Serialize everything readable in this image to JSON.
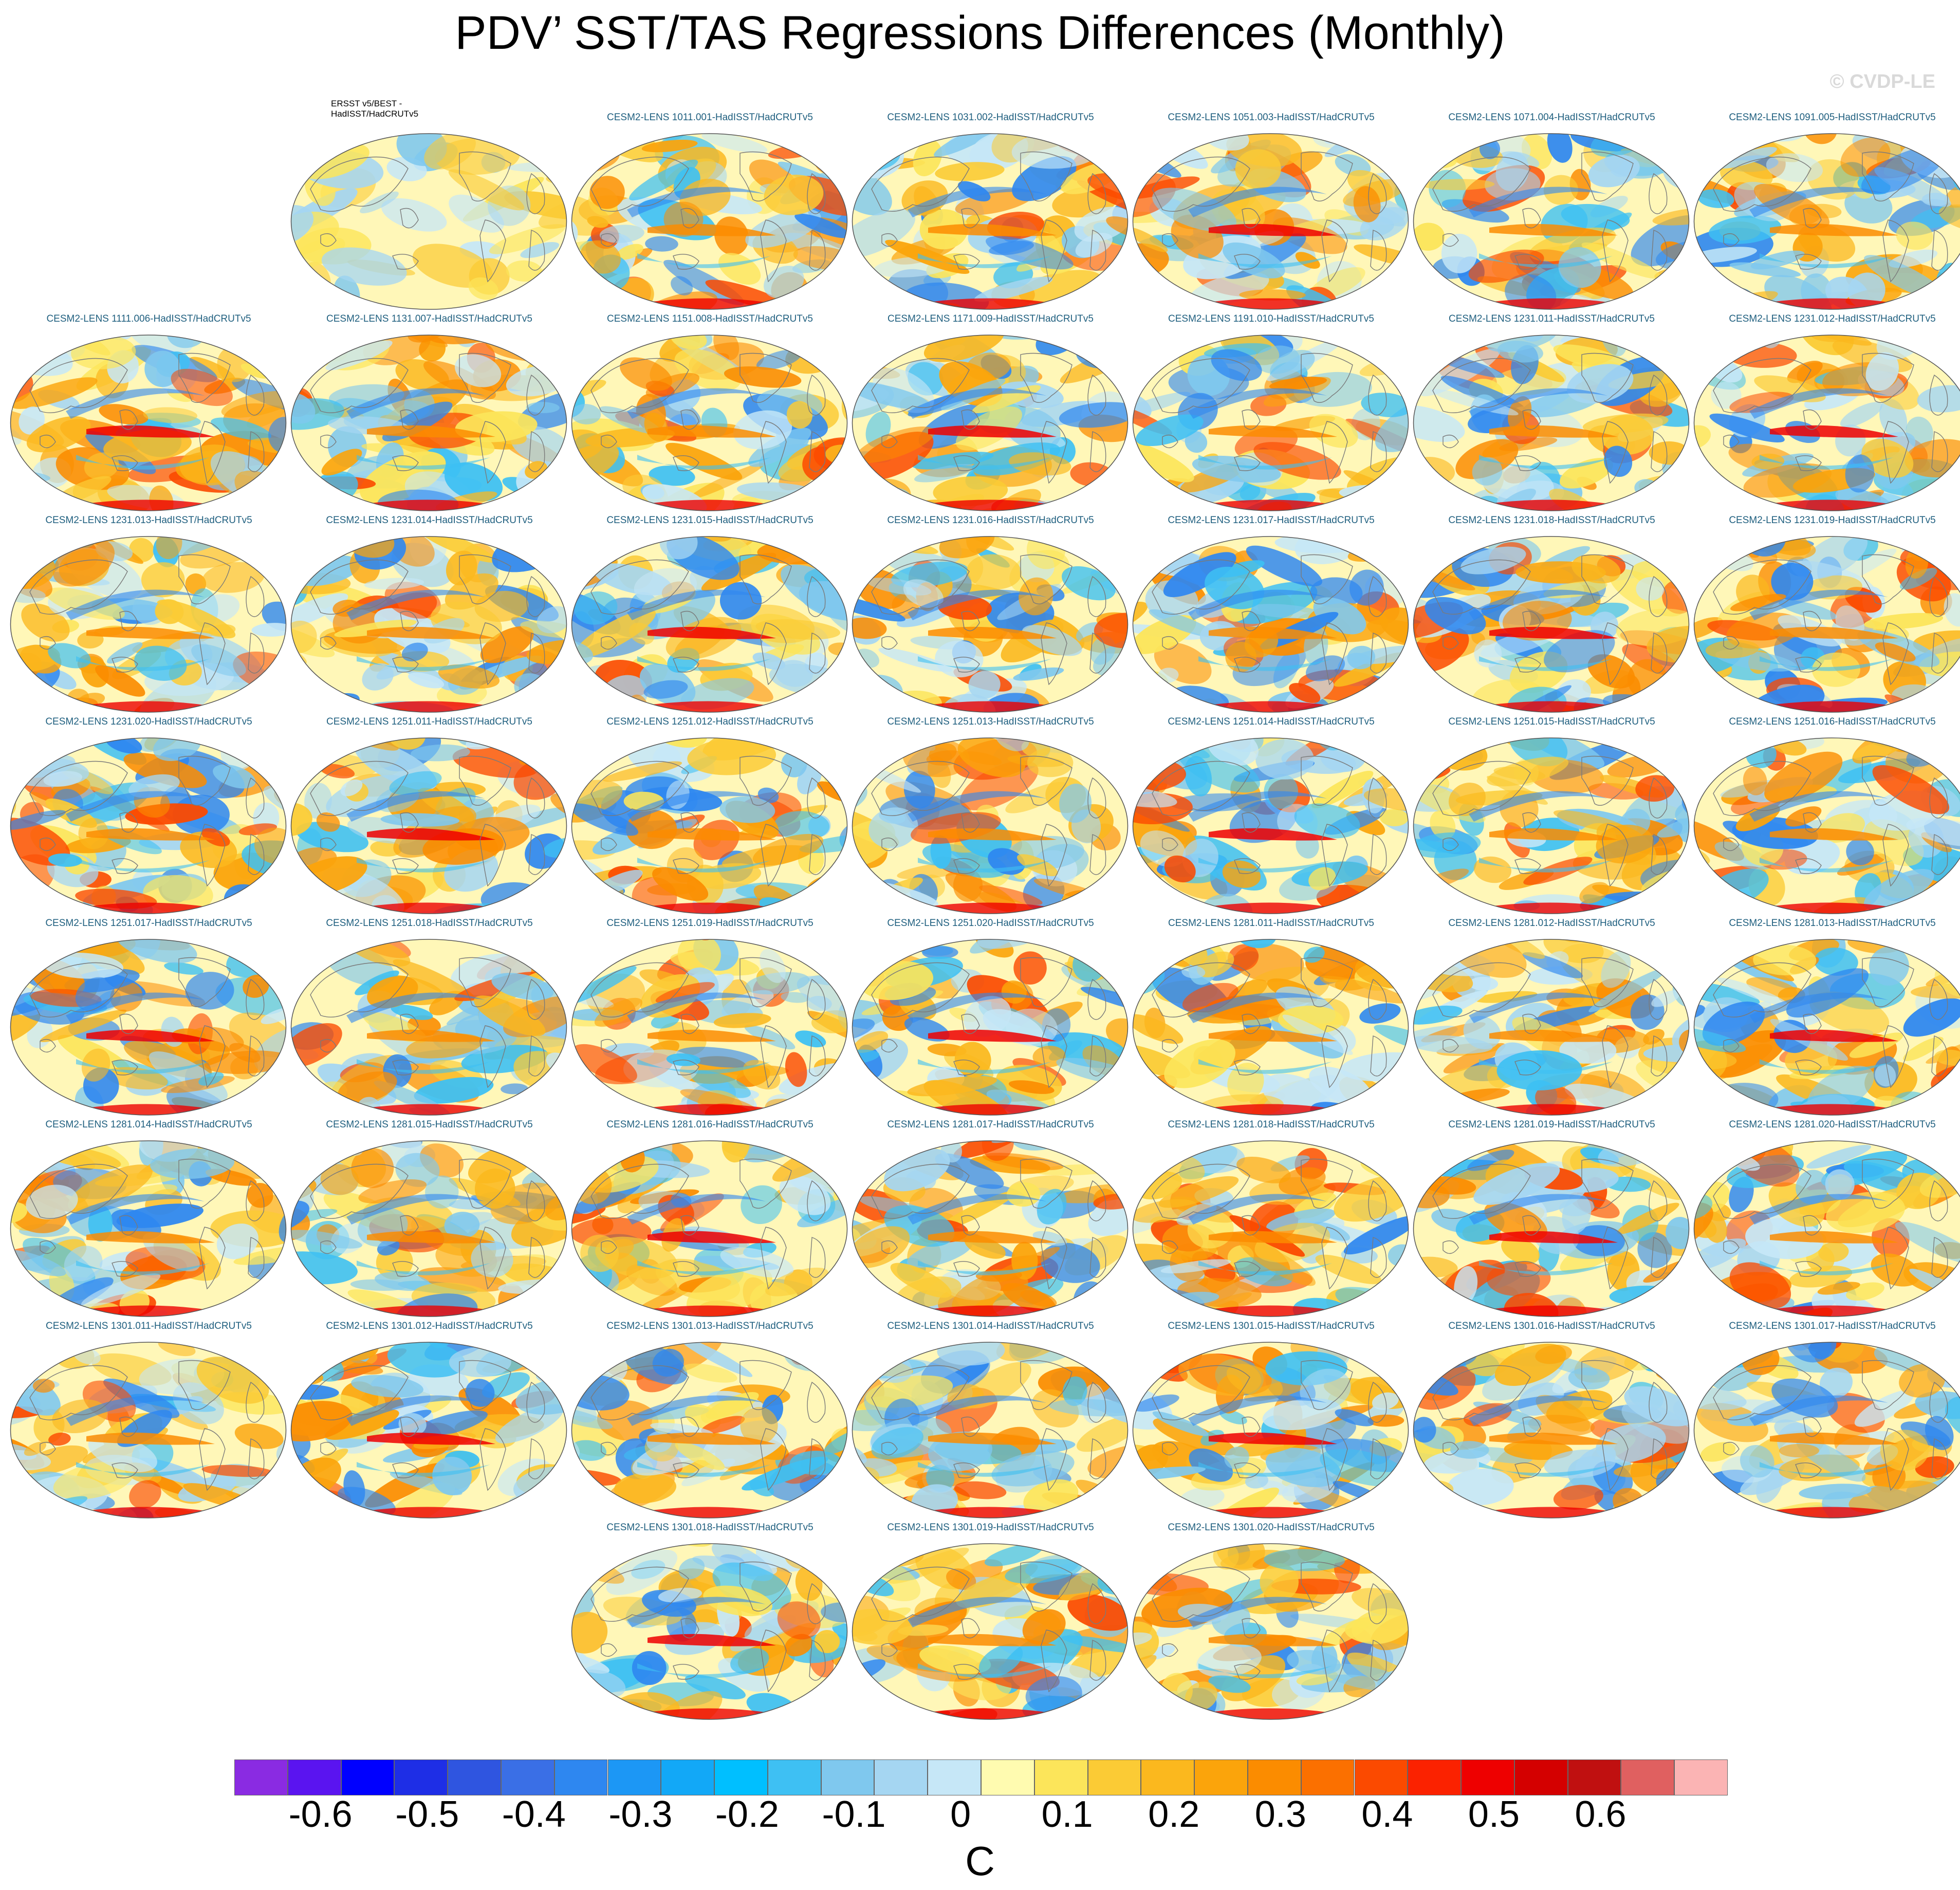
{
  "title": "PDV’ SST/TAS Regressions Differences (Monthly)",
  "credit": "© CVDP-LE",
  "panels": [
    {
      "label": "ERSST v5/BEST - HadISST/HadCRUTv5",
      "obs": true
    },
    {
      "label": "CESM2-LENS 1011.001-HadISST/HadCRUTv5"
    },
    {
      "label": "CESM2-LENS 1031.002-HadISST/HadCRUTv5"
    },
    {
      "label": "CESM2-LENS 1051.003-HadISST/HadCRUTv5"
    },
    {
      "label": "CESM2-LENS 1071.004-HadISST/HadCRUTv5"
    },
    {
      "label": "CESM2-LENS 1091.005-HadISST/HadCRUTv5"
    },
    {
      "label": "CESM2-LENS 1111.006-HadISST/HadCRUTv5"
    },
    {
      "label": "CESM2-LENS 1131.007-HadISST/HadCRUTv5"
    },
    {
      "label": "CESM2-LENS 1151.008-HadISST/HadCRUTv5"
    },
    {
      "label": "CESM2-LENS 1171.009-HadISST/HadCRUTv5"
    },
    {
      "label": "CESM2-LENS 1191.010-HadISST/HadCRUTv5"
    },
    {
      "label": "CESM2-LENS 1231.011-HadISST/HadCRUTv5"
    },
    {
      "label": "CESM2-LENS 1231.012-HadISST/HadCRUTv5"
    },
    {
      "label": "CESM2-LENS 1231.013-HadISST/HadCRUTv5"
    },
    {
      "label": "CESM2-LENS 1231.014-HadISST/HadCRUTv5"
    },
    {
      "label": "CESM2-LENS 1231.015-HadISST/HadCRUTv5"
    },
    {
      "label": "CESM2-LENS 1231.016-HadISST/HadCRUTv5"
    },
    {
      "label": "CESM2-LENS 1231.017-HadISST/HadCRUTv5"
    },
    {
      "label": "CESM2-LENS 1231.018-HadISST/HadCRUTv5"
    },
    {
      "label": "CESM2-LENS 1231.019-HadISST/HadCRUTv5"
    },
    {
      "label": "CESM2-LENS 1231.020-HadISST/HadCRUTv5"
    },
    {
      "label": "CESM2-LENS 1251.011-HadISST/HadCRUTv5"
    },
    {
      "label": "CESM2-LENS 1251.012-HadISST/HadCRUTv5"
    },
    {
      "label": "CESM2-LENS 1251.013-HadISST/HadCRUTv5"
    },
    {
      "label": "CESM2-LENS 1251.014-HadISST/HadCRUTv5"
    },
    {
      "label": "CESM2-LENS 1251.015-HadISST/HadCRUTv5"
    },
    {
      "label": "CESM2-LENS 1251.016-HadISST/HadCRUTv5"
    },
    {
      "label": "CESM2-LENS 1251.017-HadISST/HadCRUTv5"
    },
    {
      "label": "CESM2-LENS 1251.018-HadISST/HadCRUTv5"
    },
    {
      "label": "CESM2-LENS 1251.019-HadISST/HadCRUTv5"
    },
    {
      "label": "CESM2-LENS 1251.020-HadISST/HadCRUTv5"
    },
    {
      "label": "CESM2-LENS 1281.011-HadISST/HadCRUTv5"
    },
    {
      "label": "CESM2-LENS 1281.012-HadISST/HadCRUTv5"
    },
    {
      "label": "CESM2-LENS 1281.013-HadISST/HadCRUTv5"
    },
    {
      "label": "CESM2-LENS 1281.014-HadISST/HadCRUTv5"
    },
    {
      "label": "CESM2-LENS 1281.015-HadISST/HadCRUTv5"
    },
    {
      "label": "CESM2-LENS 1281.016-HadISST/HadCRUTv5"
    },
    {
      "label": "CESM2-LENS 1281.017-HadISST/HadCRUTv5"
    },
    {
      "label": "CESM2-LENS 1281.018-HadISST/HadCRUTv5"
    },
    {
      "label": "CESM2-LENS 1281.019-HadISST/HadCRUTv5"
    },
    {
      "label": "CESM2-LENS 1281.020-HadISST/HadCRUTv5"
    },
    {
      "label": "CESM2-LENS 1301.011-HadISST/HadCRUTv5"
    },
    {
      "label": "CESM2-LENS 1301.012-HadISST/HadCRUTv5"
    },
    {
      "label": "CESM2-LENS 1301.013-HadISST/HadCRUTv5"
    },
    {
      "label": "CESM2-LENS 1301.014-HadISST/HadCRUTv5"
    },
    {
      "label": "CESM2-LENS 1301.015-HadISST/HadCRUTv5"
    },
    {
      "label": "CESM2-LENS 1301.016-HadISST/HadCRUTv5"
    },
    {
      "label": "CESM2-LENS 1301.017-HadISST/HadCRUTv5"
    },
    {
      "label": "CESM2-LENS 1301.018-HadISST/HadCRUTv5"
    },
    {
      "label": "CESM2-LENS 1301.019-HadISST/HadCRUTv5"
    },
    {
      "label": "CESM2-LENS 1301.020-HadISST/HadCRUTv5"
    }
  ],
  "colorbar": {
    "colors": [
      "#8a2be2",
      "#5a14f0",
      "#0000ff",
      "#1e2ee6",
      "#2f55e0",
      "#3a6fe6",
      "#2e87f0",
      "#1c97f5",
      "#12a8f7",
      "#00bfff",
      "#3ec0f3",
      "#7fc8ee",
      "#a5d6f2",
      "#c6e7f7",
      "#fffbb0",
      "#fce55a",
      "#fbcb35",
      "#fbb81e",
      "#fba40b",
      "#fb8c00",
      "#fb7000",
      "#fb4a00",
      "#fb2200",
      "#ee0000",
      "#d40000",
      "#c01010",
      "#e06060",
      "#fbb4b4"
    ],
    "ticks": [
      "-0.6",
      "-0.5",
      "-0.4",
      "-0.3",
      "-0.2",
      "-0.1",
      "0",
      "0.1",
      "0.2",
      "0.3",
      "0.4",
      "0.5",
      "0.6"
    ],
    "units": "C"
  }
}
